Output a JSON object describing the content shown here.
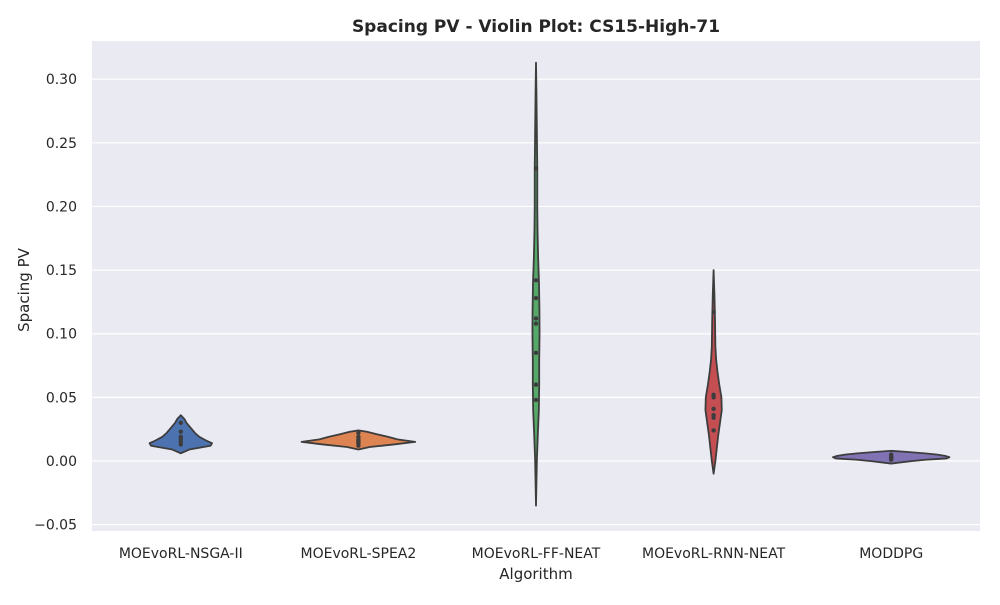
{
  "chart_data": {
    "type": "violin",
    "title": "Spacing PV - Violin Plot: CS15-High-71",
    "xlabel": "Algorithm",
    "ylabel": "Spacing PV",
    "ylim": [
      -0.055,
      0.33
    ],
    "yticks": [
      -0.05,
      0.0,
      0.05,
      0.1,
      0.15,
      0.2,
      0.25,
      0.3
    ],
    "ytick_labels": [
      "−0.05",
      "0.00",
      "0.05",
      "0.10",
      "0.15",
      "0.20",
      "0.25",
      "0.30"
    ],
    "grid": true,
    "background": "#eaeaf2",
    "categories": [
      "MOEvoRL-NSGA-II",
      "MOEvoRL-SPEA2",
      "MOEvoRL-FF-NEAT",
      "MOEvoRL-RNN-NEAT",
      "MODDPG"
    ],
    "series": [
      {
        "category": "MOEvoRL-NSGA-II",
        "color": "#4c72b0",
        "points": [
          0.013,
          0.015,
          0.017,
          0.019,
          0.023,
          0.03
        ],
        "density": [
          [
            0.006,
            0.0
          ],
          [
            0.009,
            0.12
          ],
          [
            0.012,
            0.42
          ],
          [
            0.014,
            0.44
          ],
          [
            0.016,
            0.36
          ],
          [
            0.019,
            0.26
          ],
          [
            0.022,
            0.2
          ],
          [
            0.026,
            0.14
          ],
          [
            0.03,
            0.08
          ],
          [
            0.033,
            0.05
          ],
          [
            0.036,
            0.0
          ]
        ]
      },
      {
        "category": "MOEvoRL-SPEA2",
        "color": "#dd8452",
        "points": [
          0.012,
          0.014,
          0.015,
          0.016,
          0.017,
          0.019,
          0.022
        ],
        "density": [
          [
            0.009,
            0.0
          ],
          [
            0.011,
            0.16
          ],
          [
            0.013,
            0.5
          ],
          [
            0.015,
            0.8
          ],
          [
            0.017,
            0.55
          ],
          [
            0.019,
            0.42
          ],
          [
            0.021,
            0.26
          ],
          [
            0.023,
            0.12
          ],
          [
            0.024,
            0.0
          ]
        ]
      },
      {
        "category": "MOEvoRL-FF-NEAT",
        "color": "#55a868",
        "points": [
          0.048,
          0.06,
          0.085,
          0.108,
          0.112,
          0.128,
          0.142,
          0.23
        ],
        "density": [
          [
            -0.035,
            0.0
          ],
          [
            0.0,
            0.012
          ],
          [
            0.02,
            0.025
          ],
          [
            0.04,
            0.04
          ],
          [
            0.06,
            0.045
          ],
          [
            0.08,
            0.045
          ],
          [
            0.1,
            0.05
          ],
          [
            0.12,
            0.048
          ],
          [
            0.14,
            0.042
          ],
          [
            0.16,
            0.03
          ],
          [
            0.18,
            0.022
          ],
          [
            0.2,
            0.018
          ],
          [
            0.23,
            0.018
          ],
          [
            0.26,
            0.012
          ],
          [
            0.29,
            0.006
          ],
          [
            0.313,
            0.0
          ]
        ]
      },
      {
        "category": "MOEvoRL-RNN-NEAT",
        "color": "#c44e52",
        "points": [
          0.024,
          0.034,
          0.036,
          0.041,
          0.05,
          0.052,
          0.117
        ],
        "density": [
          [
            -0.01,
            0.0
          ],
          [
            0.0,
            0.025
          ],
          [
            0.01,
            0.045
          ],
          [
            0.02,
            0.065
          ],
          [
            0.03,
            0.09
          ],
          [
            0.04,
            0.115
          ],
          [
            0.05,
            0.11
          ],
          [
            0.06,
            0.08
          ],
          [
            0.07,
            0.055
          ],
          [
            0.08,
            0.035
          ],
          [
            0.09,
            0.025
          ],
          [
            0.11,
            0.02
          ],
          [
            0.13,
            0.012
          ],
          [
            0.15,
            0.0
          ]
        ]
      },
      {
        "category": "MODDPG",
        "color": "#8172b3",
        "points": [
          0.001,
          0.002,
          0.003,
          0.004,
          0.005
        ],
        "density": [
          [
            -0.002,
            0.0
          ],
          [
            0.0,
            0.3
          ],
          [
            0.001,
            0.48
          ],
          [
            0.002,
            0.78
          ],
          [
            0.003,
            0.82
          ],
          [
            0.004,
            0.76
          ],
          [
            0.005,
            0.65
          ],
          [
            0.006,
            0.48
          ],
          [
            0.007,
            0.26
          ],
          [
            0.008,
            0.0
          ]
        ]
      }
    ]
  }
}
